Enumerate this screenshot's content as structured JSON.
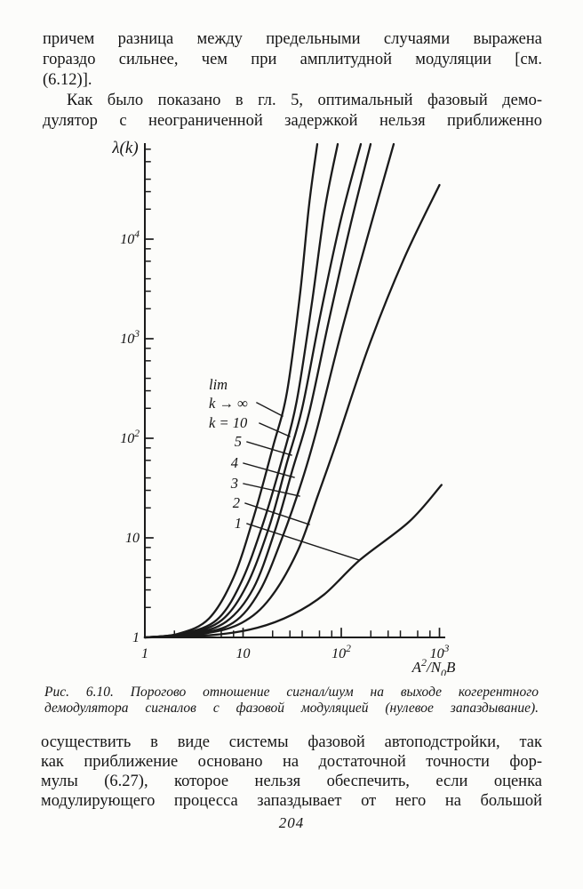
{
  "page": {
    "number": "204",
    "background": "#fcfcfa",
    "ink": "#1a1a1a"
  },
  "top_text": {
    "lines": [
      {
        "t": "причем разница между предельными случаями выражена",
        "j": true
      },
      {
        "t": "гораздо сильнее, чем при амплитудной модуляции [см.",
        "j": true
      },
      {
        "t": "(6.12)].",
        "j": false
      },
      {
        "t": "Как было показано в гл. 5, оптимальный фазовый демо-",
        "j": true,
        "indent": 27
      },
      {
        "t": "дулятор с неограниченной задержкой нельзя приближенно",
        "j": true
      }
    ]
  },
  "caption": {
    "lines": [
      {
        "t": "Рис. 6.10. Порогово отношение сигнал/шум на выходе когерентного",
        "j": true
      },
      {
        "t": "демодулятора сигналов с фазовой модуляцией (нулевое запаздывание).",
        "j": true
      }
    ]
  },
  "bottom_text": {
    "lines": [
      {
        "t": "осуществить в виде системы фазовой автоподстройки, так",
        "j": true
      },
      {
        "t": "как приближение основано на достаточной точности фор-",
        "j": true
      },
      {
        "t": "мулы (6.27), которое нельзя обеспечить, если оценка",
        "j": true
      },
      {
        "t": "модулирующего процесса запаздывает от него на большой",
        "j": true
      }
    ]
  },
  "chart_data": {
    "type": "line",
    "xscale": "log",
    "yscale": "log",
    "xlim": [
      1,
      1000
    ],
    "ylim": [
      1,
      100000
    ],
    "ylabel": "λ(k)",
    "xlabel": "A²/N₀B",
    "xlabel_parts": [
      {
        "t": "A"
      },
      {
        "t": "2",
        "sup": true
      },
      {
        "t": "/N"
      },
      {
        "t": "0",
        "sub": true
      },
      {
        "t": "B"
      }
    ],
    "x_ticks": [
      {
        "v": 1,
        "t": "1",
        "exp": ""
      },
      {
        "v": 10,
        "t": "10",
        "exp": ""
      },
      {
        "v": 100,
        "t": "10",
        "exp": "2"
      },
      {
        "v": 1000,
        "t": "10",
        "exp": "3"
      }
    ],
    "y_ticks": [
      {
        "v": 1,
        "t": "1",
        "exp": ""
      },
      {
        "v": 10,
        "t": "10",
        "exp": ""
      },
      {
        "v": 100,
        "t": "10",
        "exp": "2"
      },
      {
        "v": 1000,
        "t": "10",
        "exp": "3"
      },
      {
        "v": 10000,
        "t": "10",
        "exp": "4"
      }
    ],
    "minor_tick_multiples": [
      2,
      3,
      4,
      6,
      8
    ],
    "grid": false,
    "legend": "inline labels with leader lines",
    "series": [
      {
        "name": "k→∞",
        "points": [
          [
            1,
            1
          ],
          [
            2.2,
            1.09
          ],
          [
            4.5,
            1.55
          ],
          [
            8,
            4
          ],
          [
            13,
            17
          ],
          [
            20,
            80
          ],
          [
            28,
            290
          ],
          [
            38,
            2800
          ],
          [
            47,
            22000
          ],
          [
            57,
            90000
          ]
        ]
      },
      {
        "name": "k=10",
        "points": [
          [
            1,
            1
          ],
          [
            2.4,
            1.09
          ],
          [
            5.4,
            1.5
          ],
          [
            9.6,
            3.6
          ],
          [
            16,
            14
          ],
          [
            25,
            62
          ],
          [
            35,
            230
          ],
          [
            50,
            2200
          ],
          [
            68,
            20000
          ],
          [
            92,
            90000
          ]
        ]
      },
      {
        "name": "k=5",
        "points": [
          [
            1,
            1
          ],
          [
            2.7,
            1.09
          ],
          [
            6.1,
            1.5
          ],
          [
            11,
            3.4
          ],
          [
            18.5,
            13
          ],
          [
            28,
            57
          ],
          [
            40,
            200
          ],
          [
            61,
            1700
          ],
          [
            98,
            15000
          ],
          [
            158,
            90000
          ]
        ]
      },
      {
        "name": "k=4",
        "points": [
          [
            1,
            1
          ],
          [
            3,
            1.09
          ],
          [
            6.8,
            1.45
          ],
          [
            12.7,
            3.1
          ],
          [
            21,
            11.6
          ],
          [
            32,
            49
          ],
          [
            47,
            180
          ],
          [
            75,
            1540
          ],
          [
            123,
            13300
          ],
          [
            199,
            90000
          ]
        ]
      },
      {
        "name": "k=3",
        "points": [
          [
            1,
            1
          ],
          [
            3.3,
            1.09
          ],
          [
            7.9,
            1.4
          ],
          [
            14.7,
            2.9
          ],
          [
            25,
            10
          ],
          [
            40,
            38
          ],
          [
            58,
            136
          ],
          [
            102,
            1250
          ],
          [
            187,
            10900
          ],
          [
            342,
            90000
          ]
        ]
      },
      {
        "name": "k=2",
        "points": [
          [
            1,
            1
          ],
          [
            3.9,
            1.09
          ],
          [
            9.7,
            1.4
          ],
          [
            19,
            2.5
          ],
          [
            36,
            7.4
          ],
          [
            58,
            27
          ],
          [
            88,
            87
          ],
          [
            190,
            830
          ],
          [
            430,
            6200
          ],
          [
            1000,
            35000
          ]
        ]
      },
      {
        "name": "k=1",
        "points": [
          [
            1,
            1
          ],
          [
            5,
            1.06
          ],
          [
            14,
            1.25
          ],
          [
            32,
            1.7
          ],
          [
            67,
            2.7
          ],
          [
            155,
            6
          ],
          [
            490,
            14.5
          ],
          [
            1050,
            34
          ]
        ]
      }
    ],
    "annotations": [
      {
        "text": "lim",
        "x": 235,
        "y": 438,
        "anchor": "start"
      },
      {
        "text": "k → ∞",
        "x": 235,
        "y": 459,
        "anchor": "start",
        "leader": [
          289,
          453,
          318,
          468
        ]
      },
      {
        "text": "k = 10",
        "x": 235,
        "y": 481,
        "anchor": "start",
        "leader": [
          292,
          476,
          326,
          491
        ]
      },
      {
        "text": "5",
        "x": 272,
        "y": 502,
        "anchor": "end",
        "leader": [
          278,
          497,
          328,
          512
        ]
      },
      {
        "text": "4",
        "x": 268,
        "y": 526,
        "anchor": "end",
        "leader": [
          274,
          521,
          331,
          537
        ]
      },
      {
        "text": "3",
        "x": 268,
        "y": 549,
        "anchor": "end",
        "leader": [
          274,
          544,
          337,
          558
        ]
      },
      {
        "text": "2",
        "x": 270,
        "y": 571,
        "anchor": "end",
        "leader": [
          276,
          566,
          348,
          590
        ]
      },
      {
        "text": "1",
        "x": 272,
        "y": 594,
        "anchor": "end",
        "leader": [
          278,
          589,
          404,
          630
        ]
      }
    ]
  }
}
